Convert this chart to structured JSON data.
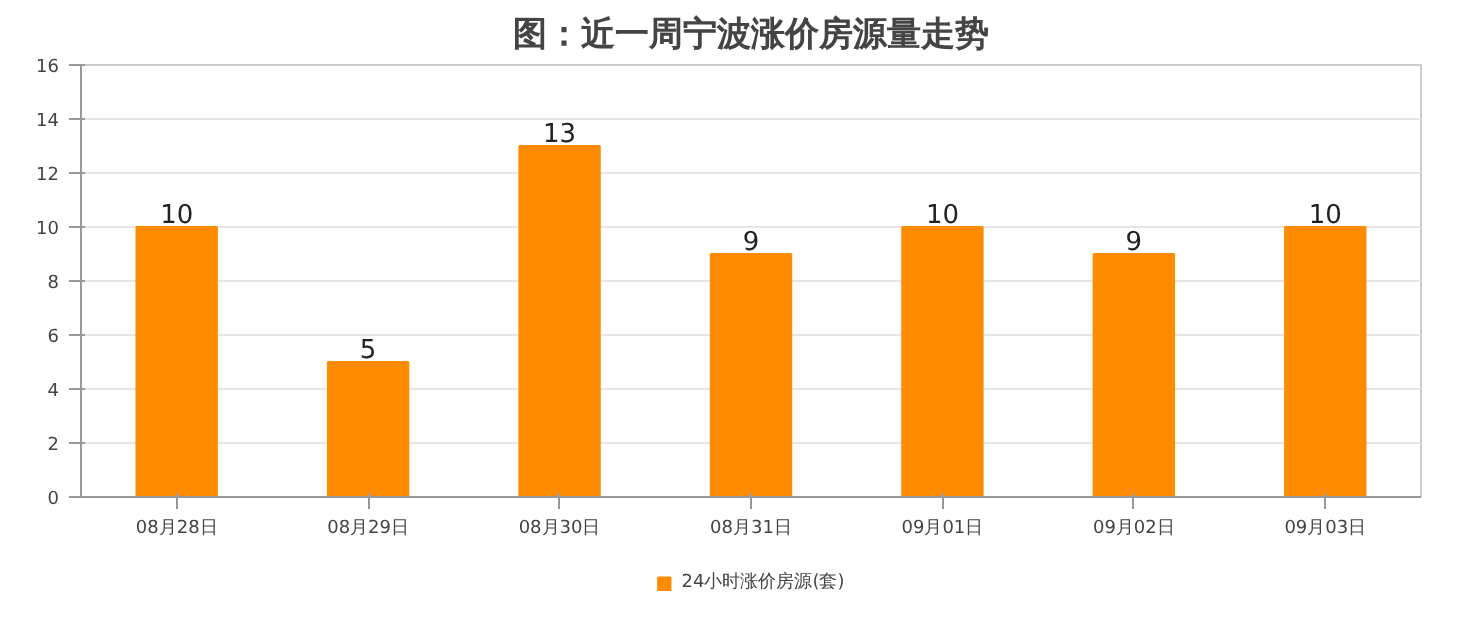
{
  "chart_data": {
    "type": "bar",
    "title": "图：近一周宁波涨价房源量走势",
    "categories": [
      "08月28日",
      "08月29日",
      "08月30日",
      "08月31日",
      "09月01日",
      "09月02日",
      "09月03日"
    ],
    "series": [
      {
        "name": "24小时涨价房源(套)",
        "color": "#ff8c00",
        "values": [
          10,
          5,
          13,
          9,
          10,
          9,
          10
        ]
      }
    ],
    "ylim": [
      0,
      16
    ],
    "yticks": [
      0,
      2,
      4,
      6,
      8,
      10,
      12,
      14,
      16
    ],
    "grid": "y",
    "legend": "bottom",
    "data_labels": true
  }
}
